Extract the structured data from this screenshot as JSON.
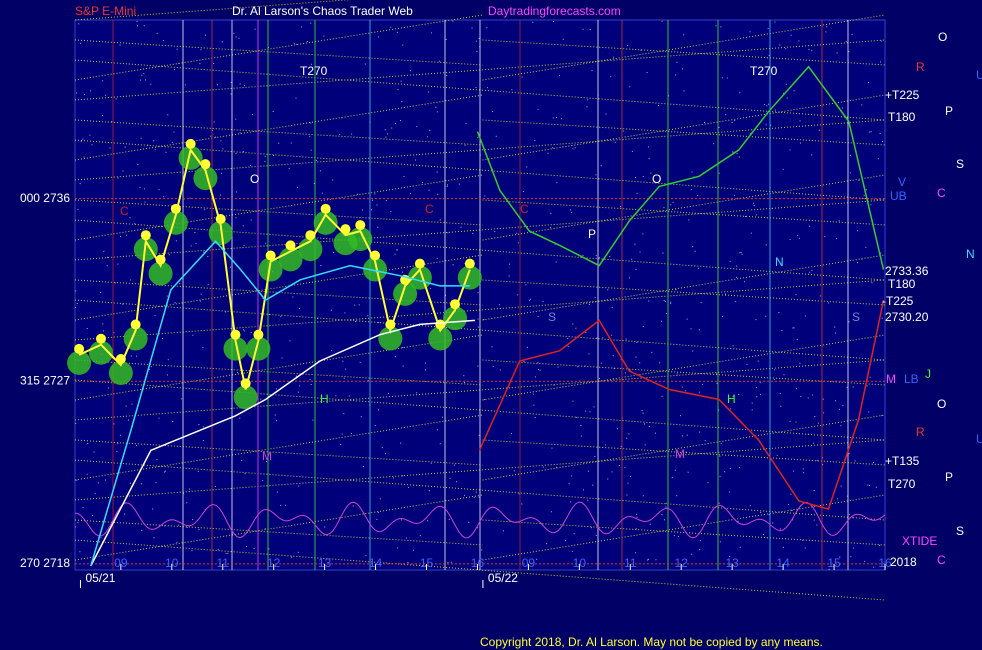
{
  "chart_data": {
    "type": "line",
    "title": "Dr. Al Larson's Chaos Trader Web",
    "subtitle": "S&P E-Mini",
    "site": "Daytradingforecasts.com",
    "copyright": "Copyright 2018, Dr. Al Larson. May not be copied by any means.",
    "xlim": [
      8.1,
      24.0
    ],
    "ylim": [
      2717.7,
      2744.8
    ],
    "yticks": [
      {
        "value": 2736,
        "label": "000 2736"
      },
      {
        "value": 2727,
        "label": "315 2727"
      },
      {
        "value": 2718,
        "label": "270 2718"
      }
    ],
    "xticks": [
      {
        "value": 9,
        "label": "09"
      },
      10,
      11,
      12,
      13,
      14,
      15,
      16,
      {
        "value": 17,
        "label": "09"
      },
      {
        "value": 18,
        "label": "10"
      },
      {
        "value": 19,
        "label": "11"
      },
      {
        "value": 20,
        "label": "12"
      },
      {
        "value": 21,
        "label": "13"
      },
      {
        "value": 22,
        "label": "14"
      },
      {
        "value": 23,
        "label": "15"
      },
      {
        "value": 24,
        "label": "16"
      }
    ],
    "dates": [
      {
        "value": 8.6,
        "label": "05/21"
      },
      {
        "value": 16.5,
        "label": "05/22"
      }
    ],
    "series": [
      {
        "color": "#ffff33",
        "bubbles": true,
        "x": [
          8.18,
          8.61,
          9.0,
          9.29,
          9.49,
          9.78,
          10.08,
          10.37,
          10.66,
          10.96,
          11.25,
          11.45,
          11.7,
          11.94,
          12.33,
          12.72,
          13.02,
          13.41,
          13.7,
          13.99,
          14.29,
          14.58,
          14.87,
          15.27,
          15.56,
          15.85
        ],
        "values": [
          2728.3,
          2728.8,
          2727.8,
          2729.5,
          2733.9,
          2732.7,
          2735.2,
          2738.4,
          2737.4,
          2734.7,
          2729.0,
          2726.6,
          2729.0,
          2732.9,
          2733.4,
          2733.9,
          2735.2,
          2734.2,
          2734.4,
          2732.9,
          2729.5,
          2731.7,
          2732.5,
          2729.5,
          2730.5,
          2732.5
        ]
      },
      {
        "color": "#ffffff",
        "x": [
          8.41,
          9.59,
          11.25,
          11.84,
          12.91,
          14.09,
          14.87,
          15.95
        ],
        "values": [
          2717.9,
          2723.6,
          2725.3,
          2726.1,
          2728.0,
          2729.3,
          2729.8,
          2730.0
        ]
      },
      {
        "color": "#33ddff",
        "x": [
          8.41,
          9.2,
          9.98,
          10.86,
          11.35,
          11.84,
          12.52,
          13.5,
          14.48,
          15.26,
          15.85
        ],
        "values": [
          2717.9,
          2724.6,
          2731.5,
          2733.9,
          2732.5,
          2731.0,
          2732.0,
          2732.7,
          2732.2,
          2731.7,
          2731.7
        ]
      },
      {
        "color": "#33cc33",
        "x": [
          16.0,
          16.44,
          17.02,
          17.61,
          18.39,
          18.98,
          19.57,
          20.35,
          21.13,
          21.72,
          22.5,
          23.29,
          23.97
        ],
        "values": [
          2739.3,
          2736.4,
          2734.4,
          2733.7,
          2732.7,
          2734.9,
          2736.6,
          2737.1,
          2738.4,
          2740.3,
          2742.5,
          2739.8,
          2732.5
        ]
      },
      {
        "color": "#dd2222",
        "x": [
          16.04,
          16.83,
          17.61,
          18.39,
          18.98,
          19.76,
          20.74,
          21.52,
          22.31,
          22.89,
          23.48,
          23.97
        ],
        "values": [
          2723.6,
          2728.0,
          2728.5,
          2730.0,
          2727.5,
          2726.6,
          2726.1,
          2724.1,
          2721.1,
          2720.7,
          2725.1,
          2731.0
        ]
      }
    ],
    "annotations": [
      "T270",
      "T270",
      "O",
      "O",
      "P",
      "N",
      "H",
      "H",
      "M",
      "M",
      "C",
      "C",
      "C",
      "S",
      "S",
      "O",
      "R",
      "U",
      "+T225",
      "P",
      "T180",
      "S",
      "V",
      "UB",
      "C",
      "N",
      "2733.36",
      "T180",
      "-T225",
      "2730.20",
      "M",
      "LB",
      "J",
      "O",
      "R",
      "U",
      "+T135",
      "P",
      "T270",
      "XTIDE",
      "S",
      "2018",
      "C"
    ]
  }
}
